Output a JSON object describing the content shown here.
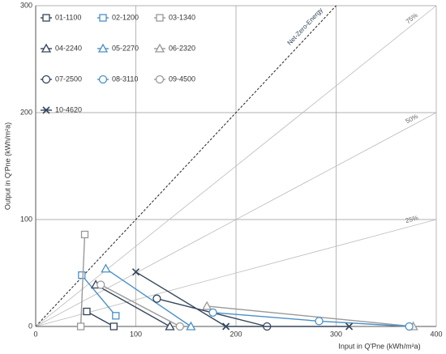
{
  "chart_data": {
    "type": "line",
    "xlabel": "Input in Q'Pne (kWh/m²a)",
    "ylabel": "Output in Q'Pne (kWh/m²a)",
    "xlim": [
      0,
      400
    ],
    "ylim": [
      0,
      300
    ],
    "xticks": [
      0,
      100,
      200,
      300,
      400
    ],
    "yticks": [
      0,
      100,
      200,
      300
    ],
    "grid": true,
    "reference_lines": [
      {
        "label": "Net-Zero-Energy",
        "slope": 1,
        "dashed": true
      },
      {
        "label": "75%",
        "slope": 0.75,
        "dashed": false
      },
      {
        "label": "50%",
        "slope": 0.5,
        "dashed": false
      },
      {
        "label": "25%",
        "slope": 0.25,
        "dashed": false
      }
    ],
    "series": [
      {
        "name": "01-1100",
        "color": "#34455c",
        "marker": "square",
        "x": [
          51,
          78
        ],
        "values": [
          14,
          0
        ]
      },
      {
        "name": "02-1200",
        "color": "#4a90c8",
        "marker": "square",
        "x": [
          46,
          80
        ],
        "values": [
          48,
          10
        ]
      },
      {
        "name": "03-1340",
        "color": "#999999",
        "marker": "square",
        "x": [
          49,
          45
        ],
        "values": [
          86,
          0
        ]
      },
      {
        "name": "04-2240",
        "color": "#34455c",
        "marker": "triangle",
        "x": [
          60,
          134
        ],
        "values": [
          39,
          0
        ]
      },
      {
        "name": "05-2270",
        "color": "#4a90c8",
        "marker": "triangle",
        "x": [
          70,
          155
        ],
        "values": [
          54,
          0
        ]
      },
      {
        "name": "06-2320",
        "color": "#999999",
        "marker": "triangle",
        "x": [
          171,
          377
        ],
        "values": [
          19,
          0
        ]
      },
      {
        "name": "07-2500",
        "color": "#34455c",
        "marker": "circle",
        "x": [
          121,
          231
        ],
        "values": [
          26,
          0
        ]
      },
      {
        "name": "08-3110",
        "color": "#4a90c8",
        "marker": "circle",
        "x": [
          177,
          283,
          373
        ],
        "values": [
          13,
          5,
          0
        ]
      },
      {
        "name": "09-4500",
        "color": "#999999",
        "marker": "circle",
        "x": [
          65,
          144
        ],
        "values": [
          39,
          0
        ]
      },
      {
        "name": "10-4620",
        "color": "#34455c",
        "marker": "x",
        "x": [
          100,
          190,
          313
        ],
        "values": [
          51,
          0,
          0
        ]
      }
    ]
  }
}
